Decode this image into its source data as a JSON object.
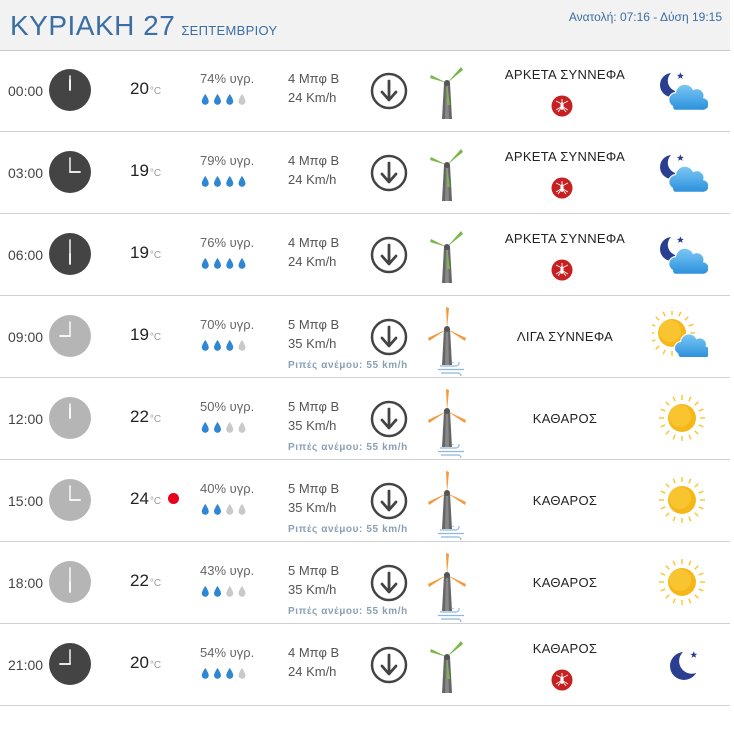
{
  "header": {
    "day": "ΚΥΡΙΑΚΗ 27",
    "month": "ΣΕΠΤΕΜΒΡΙΟΥ",
    "sun": "Ανατολή: 07:16 - Δύση 19:15"
  },
  "colors": {
    "accent": "#3a6ea5",
    "night_clock": "#444444",
    "day_clock": "#b5b5b5",
    "drop_full": "#2f86d3",
    "drop_empty": "#c9c9c9",
    "turbine_low": "#7ab648",
    "turbine_high": "#f29a3e",
    "mosquito_badge": "#c62020"
  },
  "rows": [
    {
      "time": "00:00",
      "clock": "dark",
      "hour": 0,
      "temp": "20",
      "unit": "°C",
      "hum": "74% υγρ.",
      "drops": 3,
      "wind1": "4 Μπφ Β",
      "wind2": "24 Km/h",
      "turbine": "green",
      "cond": "ΑΡΚΕΤΑ ΣΥΝΝΕΦΑ",
      "mosquito": true,
      "gust": "",
      "icon": "moon-cloud",
      "reddot": false
    },
    {
      "time": "03:00",
      "clock": "dark",
      "hour": 3,
      "temp": "19",
      "unit": "°C",
      "hum": "79% υγρ.",
      "drops": 4,
      "wind1": "4 Μπφ Β",
      "wind2": "24 Km/h",
      "turbine": "green",
      "cond": "ΑΡΚΕΤΑ ΣΥΝΝΕΦΑ",
      "mosquito": true,
      "gust": "",
      "icon": "moon-cloud",
      "reddot": false
    },
    {
      "time": "06:00",
      "clock": "dark",
      "hour": 6,
      "temp": "19",
      "unit": "°C",
      "hum": "76% υγρ.",
      "drops": 4,
      "wind1": "4 Μπφ Β",
      "wind2": "24 Km/h",
      "turbine": "green",
      "cond": "ΑΡΚΕΤΑ ΣΥΝΝΕΦΑ",
      "mosquito": true,
      "gust": "",
      "icon": "moon-cloud",
      "reddot": false
    },
    {
      "time": "09:00",
      "clock": "light",
      "hour": 9,
      "temp": "19",
      "unit": "°C",
      "hum": "70% υγρ.",
      "drops": 3,
      "wind1": "5 Μπφ Β",
      "wind2": "35 Km/h",
      "turbine": "orange",
      "cond": "ΛΙΓΑ ΣΥΝΝΕΦΑ",
      "mosquito": false,
      "gust": "Ριπές ανέμου: 55 km/h",
      "icon": "sun-cloud",
      "reddot": false
    },
    {
      "time": "12:00",
      "clock": "light",
      "hour": 12,
      "temp": "22",
      "unit": "°C",
      "hum": "50% υγρ.",
      "drops": 2,
      "wind1": "5 Μπφ Β",
      "wind2": "35 Km/h",
      "turbine": "orange",
      "cond": "ΚΑΘΑΡΟΣ",
      "mosquito": false,
      "gust": "Ριπές ανέμου: 55 km/h",
      "icon": "sun",
      "reddot": false
    },
    {
      "time": "15:00",
      "clock": "light",
      "hour": 15,
      "temp": "24",
      "unit": "°C",
      "hum": "40% υγρ.",
      "drops": 2,
      "wind1": "5 Μπφ Β",
      "wind2": "35 Km/h",
      "turbine": "orange",
      "cond": "ΚΑΘΑΡΟΣ",
      "mosquito": false,
      "gust": "Ριπές ανέμου: 55 km/h",
      "icon": "sun",
      "reddot": true
    },
    {
      "time": "18:00",
      "clock": "light",
      "hour": 18,
      "temp": "22",
      "unit": "°C",
      "hum": "43% υγρ.",
      "drops": 2,
      "wind1": "5 Μπφ Β",
      "wind2": "35 Km/h",
      "turbine": "orange",
      "cond": "ΚΑΘΑΡΟΣ",
      "mosquito": false,
      "gust": "Ριπές ανέμου: 55 km/h",
      "icon": "sun",
      "reddot": false
    },
    {
      "time": "21:00",
      "clock": "dark",
      "hour": 21,
      "temp": "20",
      "unit": "°C",
      "hum": "54% υγρ.",
      "drops": 3,
      "wind1": "4 Μπφ Β",
      "wind2": "24 Km/h",
      "turbine": "green",
      "cond": "ΚΑΘΑΡΟΣ",
      "mosquito": true,
      "gust": "",
      "icon": "moon",
      "reddot": false
    }
  ]
}
